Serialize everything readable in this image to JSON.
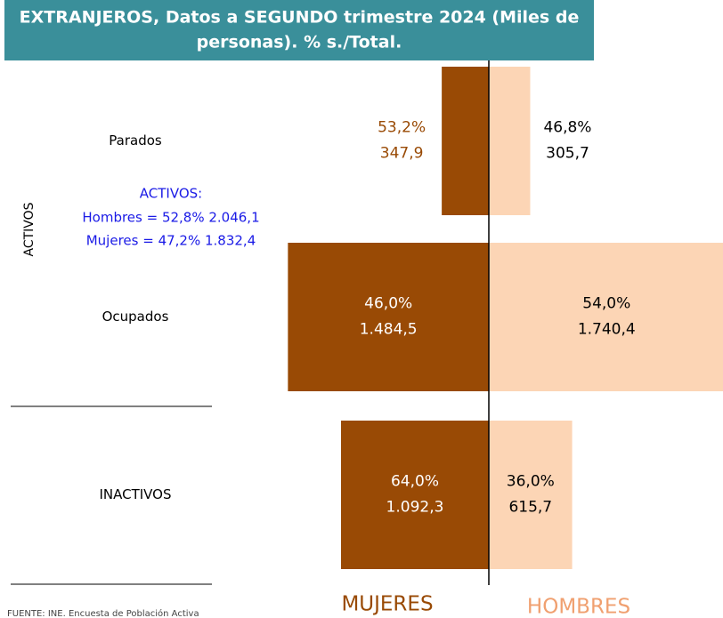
{
  "chart_data": {
    "type": "pyramid",
    "title": [
      "EXTRANJEROS, Datos a SEGUNDO trimestre 2024 (Miles de",
      "personas). % s./Total."
    ],
    "categories": [
      "Parados",
      "Ocupados",
      "INACTIVOS"
    ],
    "series": [
      {
        "name": "MUJERES",
        "color": "#994a05",
        "values": [
          347.9,
          1484.5,
          1092.3
        ],
        "value_labels": [
          "347,9",
          "1.484,5",
          "1.092,3"
        ],
        "shares": [
          53.2,
          46.0,
          64.0
        ],
        "share_labels": [
          "53,2%",
          "46,0%",
          "64,0%"
        ]
      },
      {
        "name": "HOMBRES",
        "color": "#fcd5b5",
        "values": [
          305.7,
          1740.4,
          615.7
        ],
        "value_labels": [
          "305,7",
          "1.740,4",
          "615,7"
        ],
        "shares": [
          46.8,
          54.0,
          36.0
        ],
        "share_labels": [
          "46,8%",
          "54,0%",
          "36,0%"
        ]
      }
    ],
    "group_label": "ACTIVOS",
    "annotation": [
      "ACTIVOS:",
      "Hombres = 52,8% 2.046,1",
      "Mujeres = 47,2% 1.832,4"
    ],
    "source": "FUENTE: INE. Encuesta de Población Activa"
  }
}
